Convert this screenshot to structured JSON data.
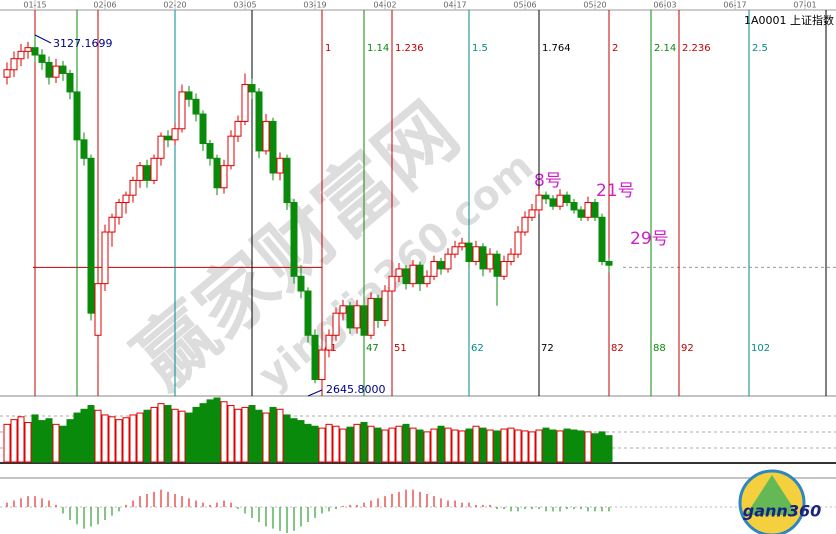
{
  "chart_data": {
    "type": "candlestick",
    "title": "1A0001 上证指数",
    "xticks": [
      {
        "value": 0,
        "label": "01-15"
      },
      {
        "value": 10,
        "label": "02-06"
      },
      {
        "value": 20,
        "label": "02-20"
      },
      {
        "value": 30,
        "label": "03-05"
      },
      {
        "value": 40,
        "label": "03-19"
      },
      {
        "value": 50,
        "label": "04-02"
      },
      {
        "value": 60,
        "label": "04-17"
      },
      {
        "value": 70,
        "label": "05-06"
      },
      {
        "value": 80,
        "label": "05-20"
      },
      {
        "value": 90,
        "label": "06-03"
      },
      {
        "value": 100,
        "label": "06-17"
      },
      {
        "value": 110,
        "label": "07-01"
      }
    ],
    "candles": [
      [
        3070,
        3090,
        3060,
        3080
      ],
      [
        3080,
        3105,
        3070,
        3095
      ],
      [
        3095,
        3115,
        3085,
        3105
      ],
      [
        3105,
        3118,
        3095,
        3110
      ],
      [
        3110,
        3127.1699,
        3090,
        3100
      ],
      [
        3100,
        3108,
        3080,
        3090
      ],
      [
        3090,
        3098,
        3060,
        3070
      ],
      [
        3070,
        3095,
        3062,
        3085
      ],
      [
        3085,
        3092,
        3065,
        3075
      ],
      [
        3075,
        3080,
        3040,
        3050
      ],
      [
        3050,
        3055,
        2975,
        2985
      ],
      [
        2985,
        2995,
        2950,
        2960
      ],
      [
        2960,
        2965,
        2740,
        2750
      ],
      [
        2720,
        2795,
        2680,
        2790
      ],
      [
        2790,
        2870,
        2780,
        2860
      ],
      [
        2860,
        2885,
        2840,
        2880
      ],
      [
        2880,
        2905,
        2870,
        2900
      ],
      [
        2900,
        2915,
        2885,
        2910
      ],
      [
        2910,
        2935,
        2900,
        2930
      ],
      [
        2930,
        2955,
        2920,
        2950
      ],
      [
        2950,
        2958,
        2920,
        2930
      ],
      [
        2930,
        2965,
        2925,
        2960
      ],
      [
        2960,
        2995,
        2950,
        2990
      ],
      [
        2990,
        2998,
        2975,
        2985
      ],
      [
        2985,
        3008,
        2978,
        3000
      ],
      [
        3000,
        3060,
        2995,
        3050
      ],
      [
        3050,
        3058,
        3030,
        3040
      ],
      [
        3040,
        3048,
        3010,
        3020
      ],
      [
        3020,
        3025,
        2970,
        2980
      ],
      [
        2980,
        2985,
        2950,
        2960
      ],
      [
        2960,
        2965,
        2910,
        2920
      ],
      [
        2920,
        2958,
        2912,
        2950
      ],
      [
        2950,
        2998,
        2945,
        2990
      ],
      [
        2990,
        3018,
        2982,
        3010
      ],
      [
        3010,
        3075,
        3005,
        3060
      ],
      [
        3060,
        3068,
        3040,
        3050
      ],
      [
        3050,
        3055,
        2960,
        2970
      ],
      [
        2970,
        3020,
        2965,
        3010
      ],
      [
        3010,
        3015,
        2930,
        2940
      ],
      [
        2940,
        2968,
        2930,
        2960
      ],
      [
        2960,
        2965,
        2890,
        2900
      ],
      [
        2900,
        2905,
        2790,
        2800
      ],
      [
        2800,
        2815,
        2770,
        2780
      ],
      [
        2780,
        2785,
        2710,
        2720
      ],
      [
        2720,
        2728,
        2655,
        2660
      ],
      [
        2660,
        2705,
        2645.8,
        2700
      ],
      [
        2700,
        2728,
        2690,
        2720
      ],
      [
        2720,
        2758,
        2712,
        2750
      ],
      [
        2750,
        2768,
        2740,
        2760
      ],
      [
        2760,
        2765,
        2722,
        2730
      ],
      [
        2730,
        2768,
        2722,
        2760
      ],
      [
        2760,
        2765,
        2712,
        2720
      ],
      [
        2720,
        2778,
        2715,
        2770
      ],
      [
        2770,
        2775,
        2730,
        2740
      ],
      [
        2740,
        2788,
        2732,
        2780
      ],
      [
        2780,
        2808,
        2772,
        2800
      ],
      [
        2800,
        2818,
        2792,
        2810
      ],
      [
        2810,
        2815,
        2782,
        2790
      ],
      [
        2790,
        2822,
        2785,
        2815
      ],
      [
        2815,
        2820,
        2780,
        2790
      ],
      [
        2790,
        2808,
        2785,
        2800
      ],
      [
        2800,
        2828,
        2795,
        2820
      ],
      [
        2820,
        2825,
        2802,
        2810
      ],
      [
        2810,
        2838,
        2805,
        2830
      ],
      [
        2830,
        2848,
        2825,
        2840
      ],
      [
        2840,
        2852,
        2835,
        2845
      ],
      [
        2845,
        2850,
        2812,
        2820
      ],
      [
        2820,
        2848,
        2815,
        2840
      ],
      [
        2840,
        2845,
        2800,
        2810
      ],
      [
        2810,
        2838,
        2805,
        2830
      ],
      [
        2830,
        2835,
        2760,
        2800
      ],
      [
        2800,
        2828,
        2795,
        2820
      ],
      [
        2820,
        2838,
        2815,
        2830
      ],
      [
        2830,
        2868,
        2825,
        2860
      ],
      [
        2860,
        2888,
        2855,
        2880
      ],
      [
        2880,
        2898,
        2875,
        2890
      ],
      [
        2890,
        2918,
        2885,
        2910
      ],
      [
        2910,
        2915,
        2898,
        2905
      ],
      [
        2905,
        2910,
        2890,
        2895
      ],
      [
        2895,
        2918,
        2890,
        2910
      ],
      [
        2910,
        2915,
        2895,
        2900
      ],
      [
        2900,
        2905,
        2885,
        2890
      ],
      [
        2890,
        2895,
        2875,
        2880
      ],
      [
        2880,
        2908,
        2875,
        2900
      ],
      [
        2900,
        2905,
        2875,
        2880
      ],
      [
        2880,
        2885,
        2815,
        2820
      ],
      [
        2820,
        2825,
        2805,
        2815
      ]
    ],
    "high_label": "3127.1699",
    "low_label": "2645.8000",
    "up_color": "#e00000",
    "down_color": "#0a8a0a",
    "level": 2812,
    "level_color": "#c00000",
    "volume": [
      40,
      45,
      48,
      42,
      50,
      44,
      46,
      40,
      38,
      45,
      52,
      56,
      60,
      55,
      50,
      48,
      45,
      47,
      50,
      52,
      55,
      58,
      62,
      60,
      56,
      54,
      52,
      58,
      62,
      66,
      68,
      64,
      60,
      56,
      58,
      60,
      55,
      52,
      58,
      56,
      50,
      46,
      44,
      40,
      38,
      36,
      40,
      38,
      35,
      37,
      40,
      42,
      38,
      36,
      34,
      36,
      38,
      40,
      36,
      34,
      32,
      35,
      38,
      36,
      34,
      33,
      35,
      38,
      36,
      34,
      33,
      35,
      36,
      34,
      33,
      32,
      34,
      36,
      34,
      33,
      35,
      34,
      33,
      32,
      30,
      32,
      28
    ],
    "macd": [
      2,
      3,
      4,
      5,
      5,
      4,
      3,
      1,
      -3,
      -6,
      -8,
      -10,
      -9,
      -8,
      -6,
      -4,
      -2,
      1,
      3,
      5,
      6,
      7,
      8,
      7,
      6,
      5,
      4,
      3,
      2,
      1,
      2,
      3,
      2,
      -1,
      -3,
      -5,
      -7,
      -9,
      -10,
      -11,
      -12,
      -11,
      -9,
      -7,
      -5,
      -3,
      -2,
      -1,
      0.5,
      1,
      1,
      2,
      3,
      4,
      5,
      6,
      7,
      8,
      8,
      7,
      6,
      5,
      4,
      3,
      3,
      2,
      2,
      1,
      1,
      1,
      -1,
      -1,
      -2,
      -2,
      -1,
      -1,
      -1,
      -2,
      -2,
      -2,
      -1,
      -1,
      -1,
      -2,
      -2,
      -2,
      -2
    ],
    "time_lines": [
      {
        "bar": 0,
        "color": "#c00000"
      },
      {
        "bar": 6,
        "color": "#0a8a0a"
      },
      {
        "bar": 9,
        "color": "#c00000"
      },
      {
        "bar": 20,
        "color": "#008b8b"
      },
      {
        "bar": 31,
        "color": "#000000"
      },
      {
        "bar": 41,
        "ratio": "1",
        "color": "#c00000"
      },
      {
        "bar": 47,
        "ratio": "1.14",
        "color": "#0a8a0a"
      },
      {
        "bar": 51,
        "ratio": "1.236",
        "color": "#c00000"
      },
      {
        "bar": 62,
        "ratio": "1.5",
        "color": "#008b8b"
      },
      {
        "bar": 72,
        "ratio": "1.764",
        "color": "#000000"
      },
      {
        "bar": 82,
        "ratio": "2",
        "color": "#c00000"
      },
      {
        "bar": 88,
        "ratio": "2.14",
        "color": "#0a8a0a"
      },
      {
        "bar": 92,
        "ratio": "2.236",
        "color": "#c00000"
      },
      {
        "bar": 102,
        "ratio": "2.5",
        "color": "#008b8b"
      },
      {
        "bar": 113,
        "color": "#000000"
      }
    ],
    "annotations": [
      "8号",
      "21号",
      "29号"
    ],
    "watermark": [
      "赢家财富网",
      "yingjia360.com"
    ],
    "logo": "gann360"
  }
}
